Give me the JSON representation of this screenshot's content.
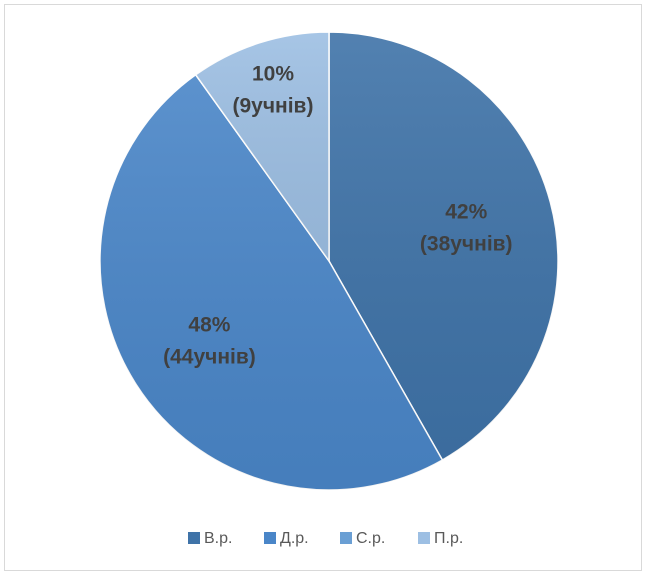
{
  "chart_data": {
    "type": "pie",
    "categories": [
      "В.р.",
      "Д.р.",
      "С.р.",
      "П.р."
    ],
    "values": [
      38,
      44,
      0,
      9
    ],
    "percent_labels": [
      "42%",
      "48%",
      "",
      "10%"
    ],
    "count_labels": [
      "(38учнів)",
      "(44учнів)",
      "",
      "(9учнів)"
    ],
    "colors": [
      "#3f73a8",
      "#4a86c8",
      "#6a9fd4",
      "#9dbfe3"
    ],
    "legend": "bottom",
    "start_angle_deg": 0,
    "direction": "clockwise"
  }
}
